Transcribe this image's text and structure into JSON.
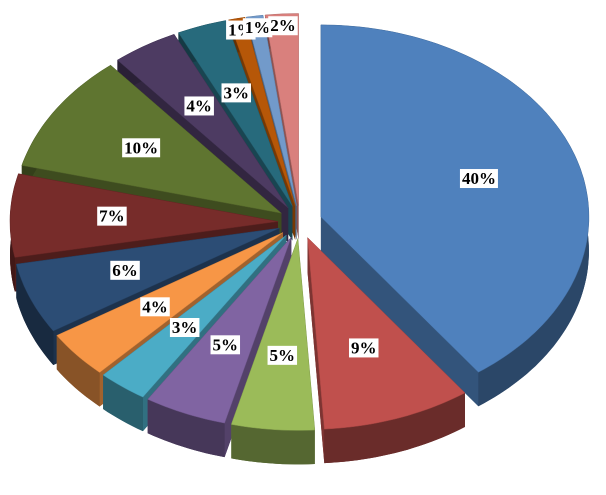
{
  "chart_data": {
    "type": "pie",
    "values": [
      40,
      9,
      5,
      5,
      3,
      4,
      6,
      7,
      10,
      4,
      3,
      1,
      1,
      2
    ],
    "value_labels": [
      "40%",
      "9%",
      "5%",
      "5%",
      "3%",
      "4%",
      "6%",
      "7%",
      "10%",
      "4%",
      "3%",
      "1%",
      "1%",
      "2%"
    ],
    "colors": [
      "#4f81bd",
      "#c0504d",
      "#9bbb59",
      "#8064a2",
      "#4bacc6",
      "#f79646",
      "#2c4d75",
      "#772c2a",
      "#5f7530",
      "#4d3b62",
      "#276a7c",
      "#b65708",
      "#729aca",
      "#d9807d"
    ]
  }
}
